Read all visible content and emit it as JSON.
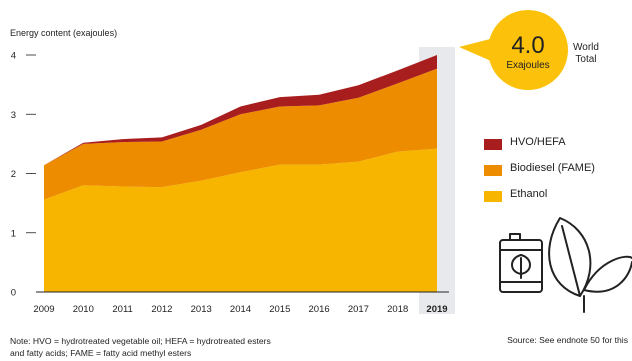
{
  "chart_data": {
    "type": "area",
    "stacked": true,
    "ylabel": "Energy content (exajoules)",
    "x": [
      "2009",
      "2010",
      "2011",
      "2012",
      "2013",
      "2014",
      "2015",
      "2016",
      "2017",
      "2018",
      "2019"
    ],
    "highlight_x": "2019",
    "ylim": [
      0,
      4
    ],
    "yticks": [
      "0",
      "1",
      "2",
      "3",
      "4"
    ],
    "grid": false,
    "legend_position": "right",
    "series": [
      {
        "name": "Ethanol",
        "color": "#f7b500",
        "values": [
          1.56,
          1.8,
          1.78,
          1.77,
          1.88,
          2.02,
          2.15,
          2.15,
          2.2,
          2.37,
          2.42
        ]
      },
      {
        "name": "Biodiesel (FAME)",
        "color": "#ee8c00",
        "values": [
          0.58,
          0.7,
          0.75,
          0.77,
          0.86,
          0.98,
          0.98,
          1.0,
          1.08,
          1.15,
          1.35
        ]
      },
      {
        "name": "HVO/HEFA",
        "color": "#a81e1e",
        "values": [
          0.0,
          0.02,
          0.05,
          0.07,
          0.08,
          0.13,
          0.16,
          0.18,
          0.21,
          0.22,
          0.23
        ]
      }
    ],
    "callout": {
      "value": "4.0",
      "unit": "Exajoules",
      "label_line1": "World",
      "label_line2": "Total",
      "color": "#fcc20b"
    }
  },
  "legend": [
    {
      "label": "HVO/HEFA",
      "color": "#a81e1e"
    },
    {
      "label": "Biodiesel (FAME)",
      "color": "#ee8c00"
    },
    {
      "label": "Ethanol",
      "color": "#f7b500"
    }
  ],
  "note": {
    "line1": "Note: HVO = hydrotreated vegetable oil; HEFA = hydrotreated esters",
    "line2": "and fatty acids; FAME = fatty acid methyl esters"
  },
  "source": "Source: See endnote 50 for this",
  "icons": [
    "fuel-barrel-leaf-icon",
    "leaves-icon"
  ]
}
